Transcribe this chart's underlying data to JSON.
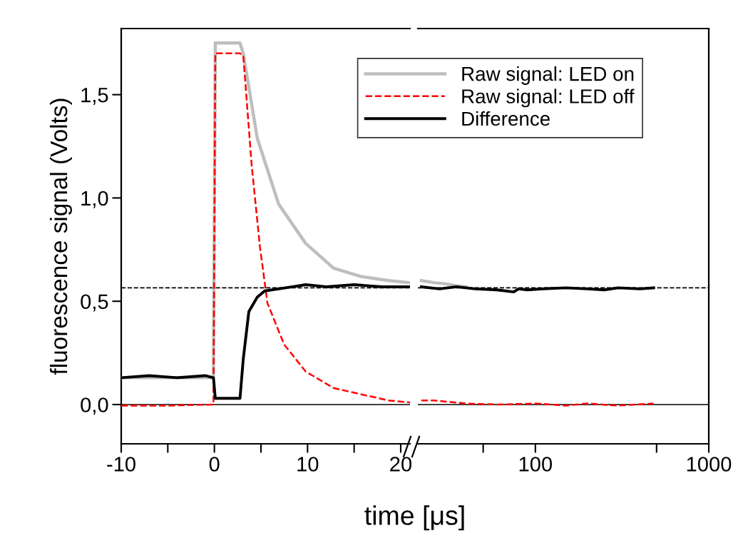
{
  "chart_data": [
    {
      "type": "line",
      "ylabel": "fluorescence signal (Volts)",
      "xlabel": "time [μs]",
      "legend": "top right",
      "grid": false,
      "xlim": [
        -10,
        21
      ],
      "xticks": [
        -10,
        {
          "value": -5,
          "label": null
        },
        0,
        {
          "value": 5,
          "label": null
        },
        10,
        {
          "value": 15,
          "label": null
        },
        20
      ],
      "ylim": [
        -0.19,
        1.82
      ],
      "yticks": [
        {
          "value": 0,
          "label": "0,0"
        },
        {
          "value": 0.5,
          "label": "0,5"
        },
        {
          "value": 1.0,
          "label": "1,0"
        },
        {
          "value": 1.5,
          "label": "1,5"
        }
      ],
      "ref_lines": [
        {
          "axis": "y",
          "value": 0,
          "color": "#000000",
          "line_style": "solid"
        },
        {
          "axis": "y",
          "value": 0.565,
          "color": "#000000",
          "line_style": "dashed"
        }
      ],
      "series": [
        {
          "name": "Raw signal: LED on",
          "color": "#bebebe",
          "line_style": "solid",
          "x": [
            -10,
            -5,
            -0.1,
            0.1,
            2.75,
            3.1,
            4.6,
            6.9,
            9.8,
            12.8,
            15.7,
            18.7,
            21
          ],
          "values": [
            0.13,
            0.13,
            0.13,
            1.75,
            1.75,
            1.7,
            1.29,
            0.97,
            0.78,
            0.66,
            0.62,
            0.6,
            0.59
          ]
        },
        {
          "name": "Raw signal: LED off",
          "color": "#ff0000",
          "line_style": "dashed",
          "x": [
            -10,
            -5,
            -0.1,
            0.1,
            2.75,
            3.1,
            4.0,
            4.9,
            5.7,
            7.5,
            9.8,
            12.8,
            15.7,
            18.7,
            21
          ],
          "values": [
            -0.005,
            -0.005,
            0.0,
            1.7,
            1.7,
            1.69,
            1.16,
            0.76,
            0.49,
            0.29,
            0.16,
            0.08,
            0.05,
            0.02,
            0.01
          ]
        },
        {
          "name": "Difference",
          "color": "#000000",
          "line_style": "solid",
          "x": [
            -10,
            -7,
            -4,
            -1,
            -0.1,
            0.1,
            2.75,
            3.1,
            3.7,
            4.6,
            5.4,
            8.4,
            9.8,
            12,
            15,
            18,
            21
          ],
          "values": [
            0.13,
            0.14,
            0.13,
            0.14,
            0.13,
            0.03,
            0.03,
            0.22,
            0.45,
            0.52,
            0.55,
            0.57,
            0.58,
            0.57,
            0.58,
            0.57,
            0.57
          ]
        }
      ]
    },
    {
      "type": "line",
      "log": "x",
      "tick_labels": "x",
      "grid": false,
      "xlim": [
        21,
        1000
      ],
      "xticks": [
        {
          "value": 50,
          "label": null
        },
        100,
        {
          "value": 500,
          "label": null
        },
        1000
      ],
      "ylim": [
        -0.19,
        1.82
      ],
      "ref_lines": [
        {
          "axis": "y",
          "value": 0,
          "color": "#000000",
          "line_style": "solid"
        },
        {
          "axis": "y",
          "value": 0.565,
          "color": "#000000",
          "line_style": "dashed"
        }
      ],
      "series": [
        {
          "color": "#bebebe",
          "line_style": "solid",
          "x": [
            22,
            26,
            30,
            35,
            40
          ],
          "values": [
            0.6,
            0.59,
            0.585,
            0.575,
            0.57
          ]
        },
        {
          "color": "#ff0000",
          "line_style": "dashed",
          "x": [
            22,
            26,
            30,
            40,
            60,
            100,
            150,
            200,
            300,
            480
          ],
          "values": [
            0.02,
            0.02,
            0.015,
            0.005,
            0.0,
            0.005,
            -0.005,
            0.005,
            -0.005,
            0.005
          ]
        },
        {
          "color": "#000000",
          "line_style": "solid",
          "x": [
            22,
            28,
            35,
            45,
            60,
            75,
            80,
            90,
            110,
            150,
            200,
            250,
            300,
            400,
            480
          ],
          "values": [
            0.57,
            0.56,
            0.57,
            0.56,
            0.555,
            0.545,
            0.56,
            0.555,
            0.56,
            0.565,
            0.56,
            0.555,
            0.565,
            0.56,
            0.565
          ]
        }
      ]
    }
  ]
}
